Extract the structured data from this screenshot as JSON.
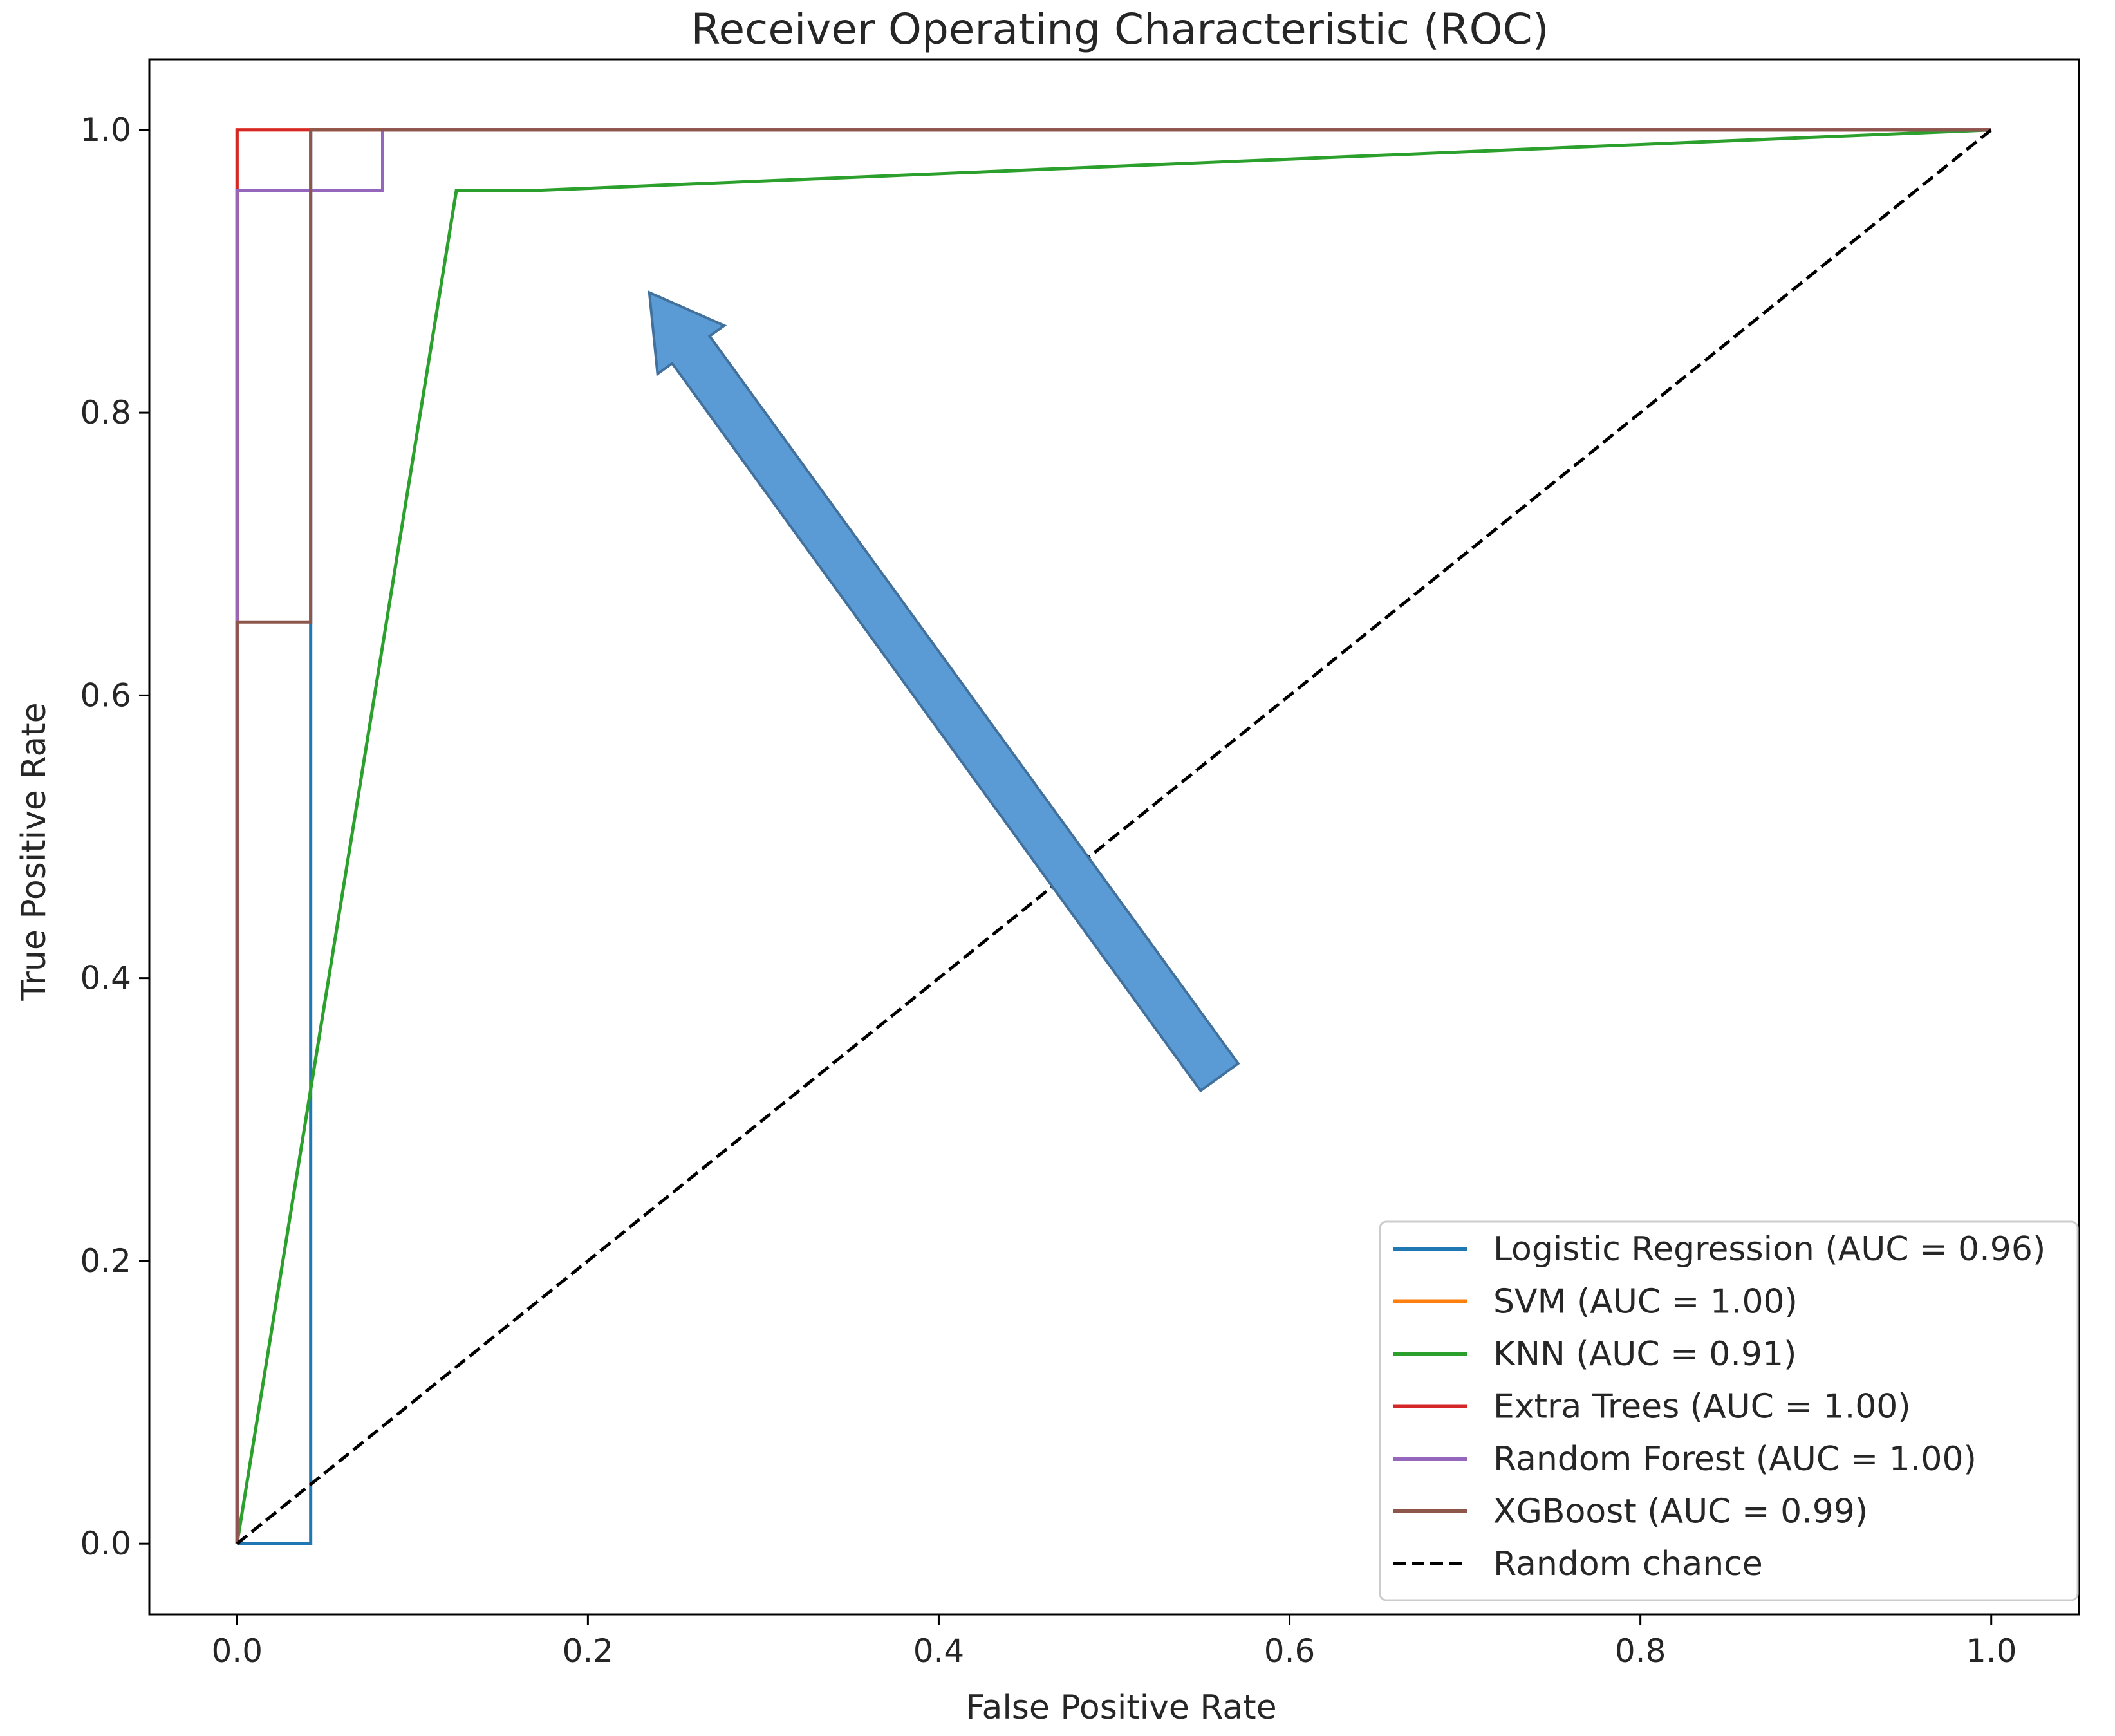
{
  "chart_data": {
    "type": "line",
    "title": "Receiver Operating Characteristic (ROC)",
    "xlabel": "False Positive Rate",
    "ylabel": "True Positive Rate",
    "xlim": [
      -0.05,
      1.05
    ],
    "ylim": [
      -0.05,
      1.05
    ],
    "xticks": [
      {
        "value": 0.0,
        "label": "0.0"
      },
      {
        "value": 0.2,
        "label": "0.2"
      },
      {
        "value": 0.4,
        "label": "0.4"
      },
      {
        "value": 0.6,
        "label": "0.6"
      },
      {
        "value": 0.8,
        "label": "0.8"
      },
      {
        "value": 1.0,
        "label": "1.0"
      }
    ],
    "yticks": [
      {
        "value": 0.0,
        "label": "0.0"
      },
      {
        "value": 0.2,
        "label": "0.2"
      },
      {
        "value": 0.4,
        "label": "0.4"
      },
      {
        "value": 0.6,
        "label": "0.6"
      },
      {
        "value": 0.8,
        "label": "0.8"
      },
      {
        "value": 1.0,
        "label": "1.0"
      }
    ],
    "grid": false,
    "legend_position": "lower right",
    "series": [
      {
        "name": "Logistic Regression (AUC = 0.96)",
        "color": "#1f77b4",
        "dash": "solid",
        "x": [
          0.0,
          0.042,
          0.042,
          0.042,
          1.0
        ],
        "y": [
          0.0,
          0.0,
          0.652,
          1.0,
          1.0
        ]
      },
      {
        "name": "SVM (AUC = 1.00)",
        "color": "#ff7f0e",
        "dash": "solid",
        "x": [
          0.0,
          0.0,
          1.0
        ],
        "y": [
          0.0,
          1.0,
          1.0
        ]
      },
      {
        "name": "KNN (AUC = 0.91)",
        "color": "#2ca02c",
        "dash": "solid",
        "x": [
          0.0,
          0.125,
          0.167,
          1.0
        ],
        "y": [
          0.0,
          0.957,
          0.957,
          1.0
        ]
      },
      {
        "name": "Extra Trees (AUC = 1.00)",
        "color": "#d62728",
        "dash": "solid",
        "x": [
          0.0,
          0.0,
          1.0
        ],
        "y": [
          0.0,
          1.0,
          1.0
        ]
      },
      {
        "name": "Random Forest (AUC = 1.00)",
        "color": "#9467bd",
        "dash": "solid",
        "x": [
          0.0,
          0.0,
          0.083,
          0.083,
          1.0
        ],
        "y": [
          0.0,
          0.957,
          0.957,
          1.0,
          1.0
        ]
      },
      {
        "name": "XGBoost (AUC = 0.99)",
        "color": "#8c564b",
        "dash": "solid",
        "x": [
          0.0,
          0.0,
          0.042,
          0.042,
          1.0
        ],
        "y": [
          0.0,
          0.652,
          0.652,
          1.0,
          1.0
        ]
      },
      {
        "name": "Random chance",
        "color": "#000000",
        "dash": "dashed",
        "x": [
          0.0,
          1.0
        ],
        "y": [
          0.0,
          1.0
        ]
      }
    ],
    "annotations": [
      {
        "type": "arrow",
        "color": "#5b9bd5",
        "edge_color": "#41719c",
        "from": {
          "x": 0.56,
          "y": 0.33
        },
        "to": {
          "x": 0.235,
          "y": 0.885
        }
      }
    ]
  }
}
